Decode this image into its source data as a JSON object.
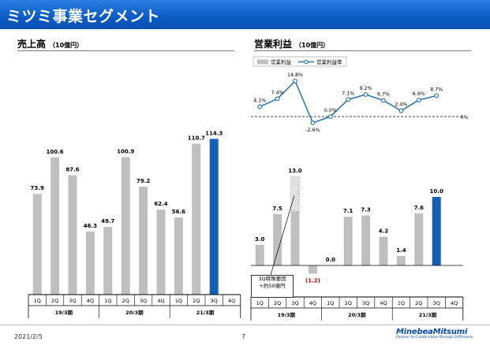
{
  "header": {
    "title": "ミツミ事業セグメント"
  },
  "left_section": {
    "title": "売上高",
    "unit": "（10億円）"
  },
  "right_section": {
    "title": "営業利益",
    "unit": "（10億円）"
  },
  "callout": {
    "line1": "3Q特殊要因",
    "line2": "+約50億円"
  },
  "footer": {
    "date": "2021/2/5",
    "page": "7"
  },
  "logo": {
    "name": "MinebeaMitsumi",
    "tagline": "Passion to Create Value through Difference"
  },
  "colors": {
    "header": "#0b5bc4",
    "bar_gray": "#bfbfbf",
    "bar_blue": "#1560b0",
    "line": "#2e75b6",
    "negative": "#c00000"
  },
  "chart_data": [
    {
      "type": "bar",
      "name": "売上高",
      "categories": [
        "1Q",
        "2Q",
        "3Q",
        "4Q",
        "1Q",
        "2Q",
        "3Q",
        "4Q",
        "1Q",
        "2Q",
        "3Q",
        "4Q"
      ],
      "groups": [
        {
          "label": "19/3期",
          "start": 0,
          "end": 3
        },
        {
          "label": "20/3期",
          "start": 4,
          "end": 7
        },
        {
          "label": "21/3期",
          "start": 8,
          "end": 11
        }
      ],
      "values": [
        73.9,
        100.6,
        87.6,
        46.3,
        49.7,
        100.9,
        79.2,
        62.4,
        56.6,
        110.7,
        114.3,
        null
      ],
      "labels": [
        "73.9",
        "100.6",
        "87.6",
        "46.3",
        "49.7",
        "100.9",
        "79.2",
        "62.4",
        "56.6",
        "110.7",
        "114.3",
        ""
      ],
      "highlight_index": 10
    },
    {
      "type": "bar",
      "name": "営業利益",
      "categories": [
        "1Q",
        "2Q",
        "3Q",
        "4Q",
        "1Q",
        "2Q",
        "3Q",
        "4Q",
        "1Q",
        "2Q",
        "3Q",
        "4Q"
      ],
      "groups": [
        {
          "label": "19/3期",
          "start": 0,
          "end": 3
        },
        {
          "label": "20/3期",
          "start": 4,
          "end": 7
        },
        {
          "label": "21/3期",
          "start": 8,
          "end": 11
        }
      ],
      "series": [
        {
          "name": "営業利益",
          "values": [
            3.0,
            7.5,
            13.0,
            -1.2,
            0.0,
            7.1,
            7.3,
            4.2,
            1.4,
            7.6,
            10.0,
            null
          ]
        },
        {
          "name": "営業利益率",
          "values": [
            4.1,
            7.4,
            14.8,
            -2.6,
            0.0,
            7.1,
            9.2,
            6.7,
            2.4,
            6.9,
            8.7,
            null
          ]
        }
      ],
      "labels": [
        "3.0",
        "7.5",
        "13.0",
        "(1.2)",
        "0.0",
        "7.1",
        "7.3",
        "4.2",
        "1.4",
        "7.6",
        "10.0",
        ""
      ],
      "rate_labels": [
        "4.1%",
        "7.4%",
        "14.8%",
        "-2.6%",
        "0.0%",
        "7.1%",
        "9.2%",
        "6.7%",
        "2.4%",
        "6.9%",
        "8.7%",
        ""
      ],
      "special_segment": {
        "index": 2,
        "from": 7.9,
        "to": 13.0
      },
      "zero_label": "0%",
      "highlight_index": 10
    }
  ]
}
